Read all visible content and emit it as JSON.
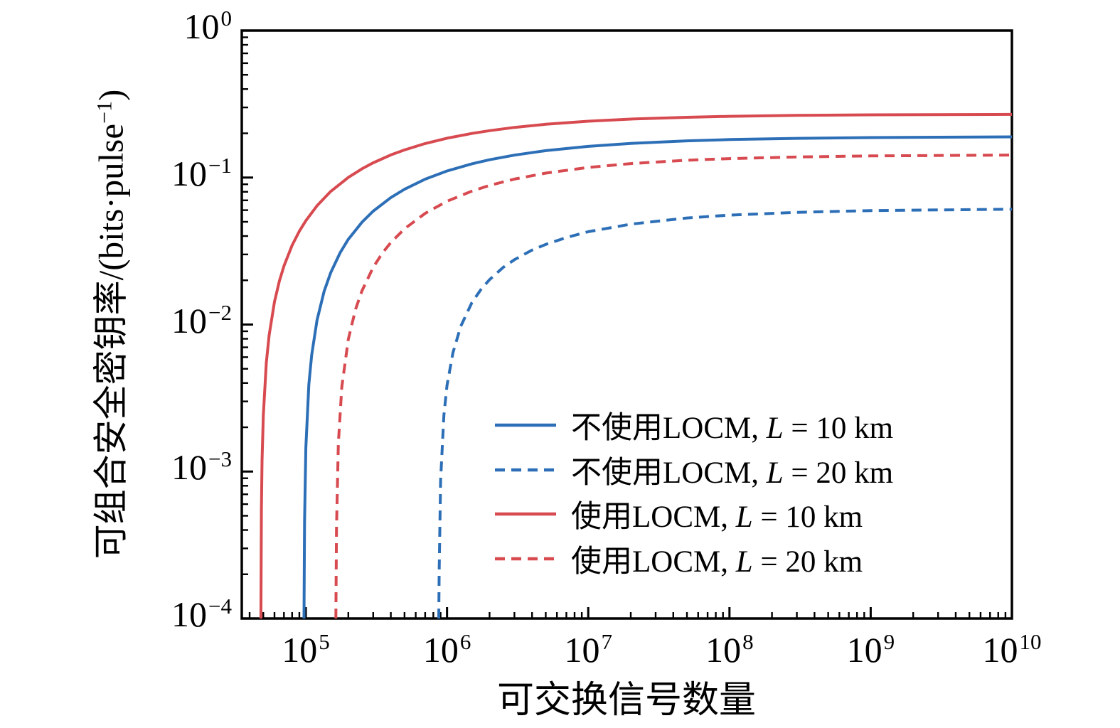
{
  "figure": {
    "background": "#ffffff",
    "axis_color": "#000000",
    "text_color": "#000000"
  },
  "chart_data": {
    "type": "line",
    "title": "",
    "xlabel": "可交换信号数量",
    "ylabel": "可组合安全密钥率/(bits·pulse⁻¹)",
    "ylabel_parts": {
      "main": "可组合安全密钥率/(bits·pulse",
      "sup": "−1",
      "end": ")"
    },
    "x_scale": "log",
    "y_scale": "log",
    "xlim": [
      35200,
      10000000000.0
    ],
    "ylim": [
      0.0001,
      1
    ],
    "x_major_tick_exponents": [
      5,
      6,
      7,
      8,
      9,
      10
    ],
    "y_major_tick_exponents": [
      0,
      -1,
      -2,
      -3,
      -4
    ],
    "tick_label_base": "10",
    "grid": false,
    "legend_position": "inside lower right",
    "series": [
      {
        "id": "no_locm_10km",
        "name": "不使用LOCM, L = 10 km",
        "legend_prefix": "不使用LOCM, ",
        "legend_var": "L",
        "legend_suffix": " = 10 km",
        "color": "#2d6fb7",
        "style": "solid",
        "threshold_signals": 97100,
        "asymptote_rate": 0.189,
        "points": [
          [
            97100,
            0.0001
          ],
          [
            97500,
            0.00022
          ],
          [
            98000,
            0.00046
          ],
          [
            100000,
            0.00145
          ],
          [
            105000,
            0.0039
          ],
          [
            110000,
            0.0062
          ],
          [
            120000,
            0.0107
          ],
          [
            135000,
            0.0169
          ],
          [
            150000,
            0.0225
          ],
          [
            175000,
            0.0308
          ],
          [
            200000,
            0.038
          ],
          [
            250000,
            0.0497
          ],
          [
            300000,
            0.0591
          ],
          [
            400000,
            0.0731
          ],
          [
            500000,
            0.0833
          ],
          [
            700000,
            0.0975
          ],
          [
            1000000,
            0.1108
          ],
          [
            1500000,
            0.124
          ],
          [
            2000000,
            0.1322
          ],
          [
            3000000,
            0.1421
          ],
          [
            5000000,
            0.1524
          ],
          [
            10000000,
            0.163
          ],
          [
            20000000,
            0.1707
          ],
          [
            50000000,
            0.1777
          ],
          [
            100000000,
            0.1813
          ],
          [
            300000000,
            0.1849
          ],
          [
            1000000000,
            0.1872
          ],
          [
            10000000000,
            0.1891
          ]
        ]
      },
      {
        "id": "no_locm_20km",
        "name": "不使用LOCM, L = 20 km",
        "legend_prefix": "不使用LOCM, ",
        "legend_var": "L",
        "legend_suffix": " = 20 km",
        "color": "#2d6fb7",
        "style": "dashed",
        "threshold_signals": 874000,
        "asymptote_rate": 0.0609,
        "points": [
          [
            874000,
            0.0001
          ],
          [
            880000,
            0.00021
          ],
          [
            900000,
            0.00087
          ],
          [
            950000,
            0.00241
          ],
          [
            1000000,
            0.00385
          ],
          [
            1100000,
            0.00642
          ],
          [
            1250000,
            0.00971
          ],
          [
            1500000,
            0.0141
          ],
          [
            1750000,
            0.0175
          ],
          [
            2000000,
            0.0202
          ],
          [
            2500000,
            0.0245
          ],
          [
            3000000,
            0.0276
          ],
          [
            4000000,
            0.0321
          ],
          [
            5000000,
            0.0351
          ],
          [
            7000000,
            0.0391
          ],
          [
            10000000,
            0.0428
          ],
          [
            20000000,
            0.0482
          ],
          [
            50000000,
            0.0531
          ],
          [
            100000000,
            0.0555
          ],
          [
            300000000,
            0.058
          ],
          [
            1000000000,
            0.0596
          ],
          [
            10000000000,
            0.0609
          ]
        ]
      },
      {
        "id": "locm_10km",
        "name": "使用LOCM, L = 10 km",
        "legend_prefix": "使用LOCM, ",
        "legend_var": "L",
        "legend_suffix": " = 10 km",
        "color": "#d74a50",
        "style": "solid",
        "threshold_signals": 48100,
        "asymptote_rate": 0.269,
        "points": [
          [
            48100,
            0.0001
          ],
          [
            48500,
            0.00055
          ],
          [
            49000,
            0.00119
          ],
          [
            50000,
            0.00241
          ],
          [
            52500,
            0.00549
          ],
          [
            55000,
            0.00848
          ],
          [
            60000,
            0.0143
          ],
          [
            65000,
            0.0198
          ],
          [
            70000,
            0.025
          ],
          [
            80000,
            0.0346
          ],
          [
            90000,
            0.0432
          ],
          [
            100000,
            0.0509
          ],
          [
            120000,
            0.0643
          ],
          [
            150000,
            0.0804
          ],
          [
            200000,
            0.1002
          ],
          [
            250000,
            0.1147
          ],
          [
            300000,
            0.126
          ],
          [
            400000,
            0.1425
          ],
          [
            500000,
            0.1542
          ],
          [
            700000,
            0.1703
          ],
          [
            1000000,
            0.1852
          ],
          [
            1500000,
            0.1996
          ],
          [
            2000000,
            0.2085
          ],
          [
            3000000,
            0.2193
          ],
          [
            5000000,
            0.2303
          ],
          [
            10000000,
            0.2416
          ],
          [
            20000000,
            0.2498
          ],
          [
            50000000,
            0.2571
          ],
          [
            100000000,
            0.2609
          ],
          [
            300000000,
            0.2647
          ],
          [
            1000000000,
            0.2671
          ],
          [
            10000000000,
            0.2691
          ]
        ]
      },
      {
        "id": "locm_20km",
        "name": "使用LOCM, L = 20 km",
        "legend_prefix": "使用LOCM, ",
        "legend_var": "L",
        "legend_suffix": " = 20 km",
        "color": "#d74a50",
        "style": "dashed",
        "threshold_signals": 163300,
        "asymptote_rate": 0.142,
        "points": [
          [
            163300,
            0.0001
          ],
          [
            165000,
            0.00041
          ],
          [
            170000,
            0.00155
          ],
          [
            180000,
            0.00378
          ],
          [
            200000,
            0.00793
          ],
          [
            225000,
            0.0127
          ],
          [
            250000,
            0.017
          ],
          [
            300000,
            0.0245
          ],
          [
            350000,
            0.0308
          ],
          [
            400000,
            0.0361
          ],
          [
            500000,
            0.0448
          ],
          [
            700000,
            0.0571
          ],
          [
            1000000,
            0.069
          ],
          [
            1500000,
            0.0809
          ],
          [
            2000000,
            0.0884
          ],
          [
            3000000,
            0.0976
          ],
          [
            5000000,
            0.1072
          ],
          [
            10000000,
            0.1172
          ],
          [
            20000000,
            0.1245
          ],
          [
            50000000,
            0.1312
          ],
          [
            100000000,
            0.1346
          ],
          [
            300000000,
            0.1381
          ],
          [
            1000000000,
            0.1403
          ],
          [
            10000000000,
            0.1422
          ]
        ]
      }
    ]
  }
}
